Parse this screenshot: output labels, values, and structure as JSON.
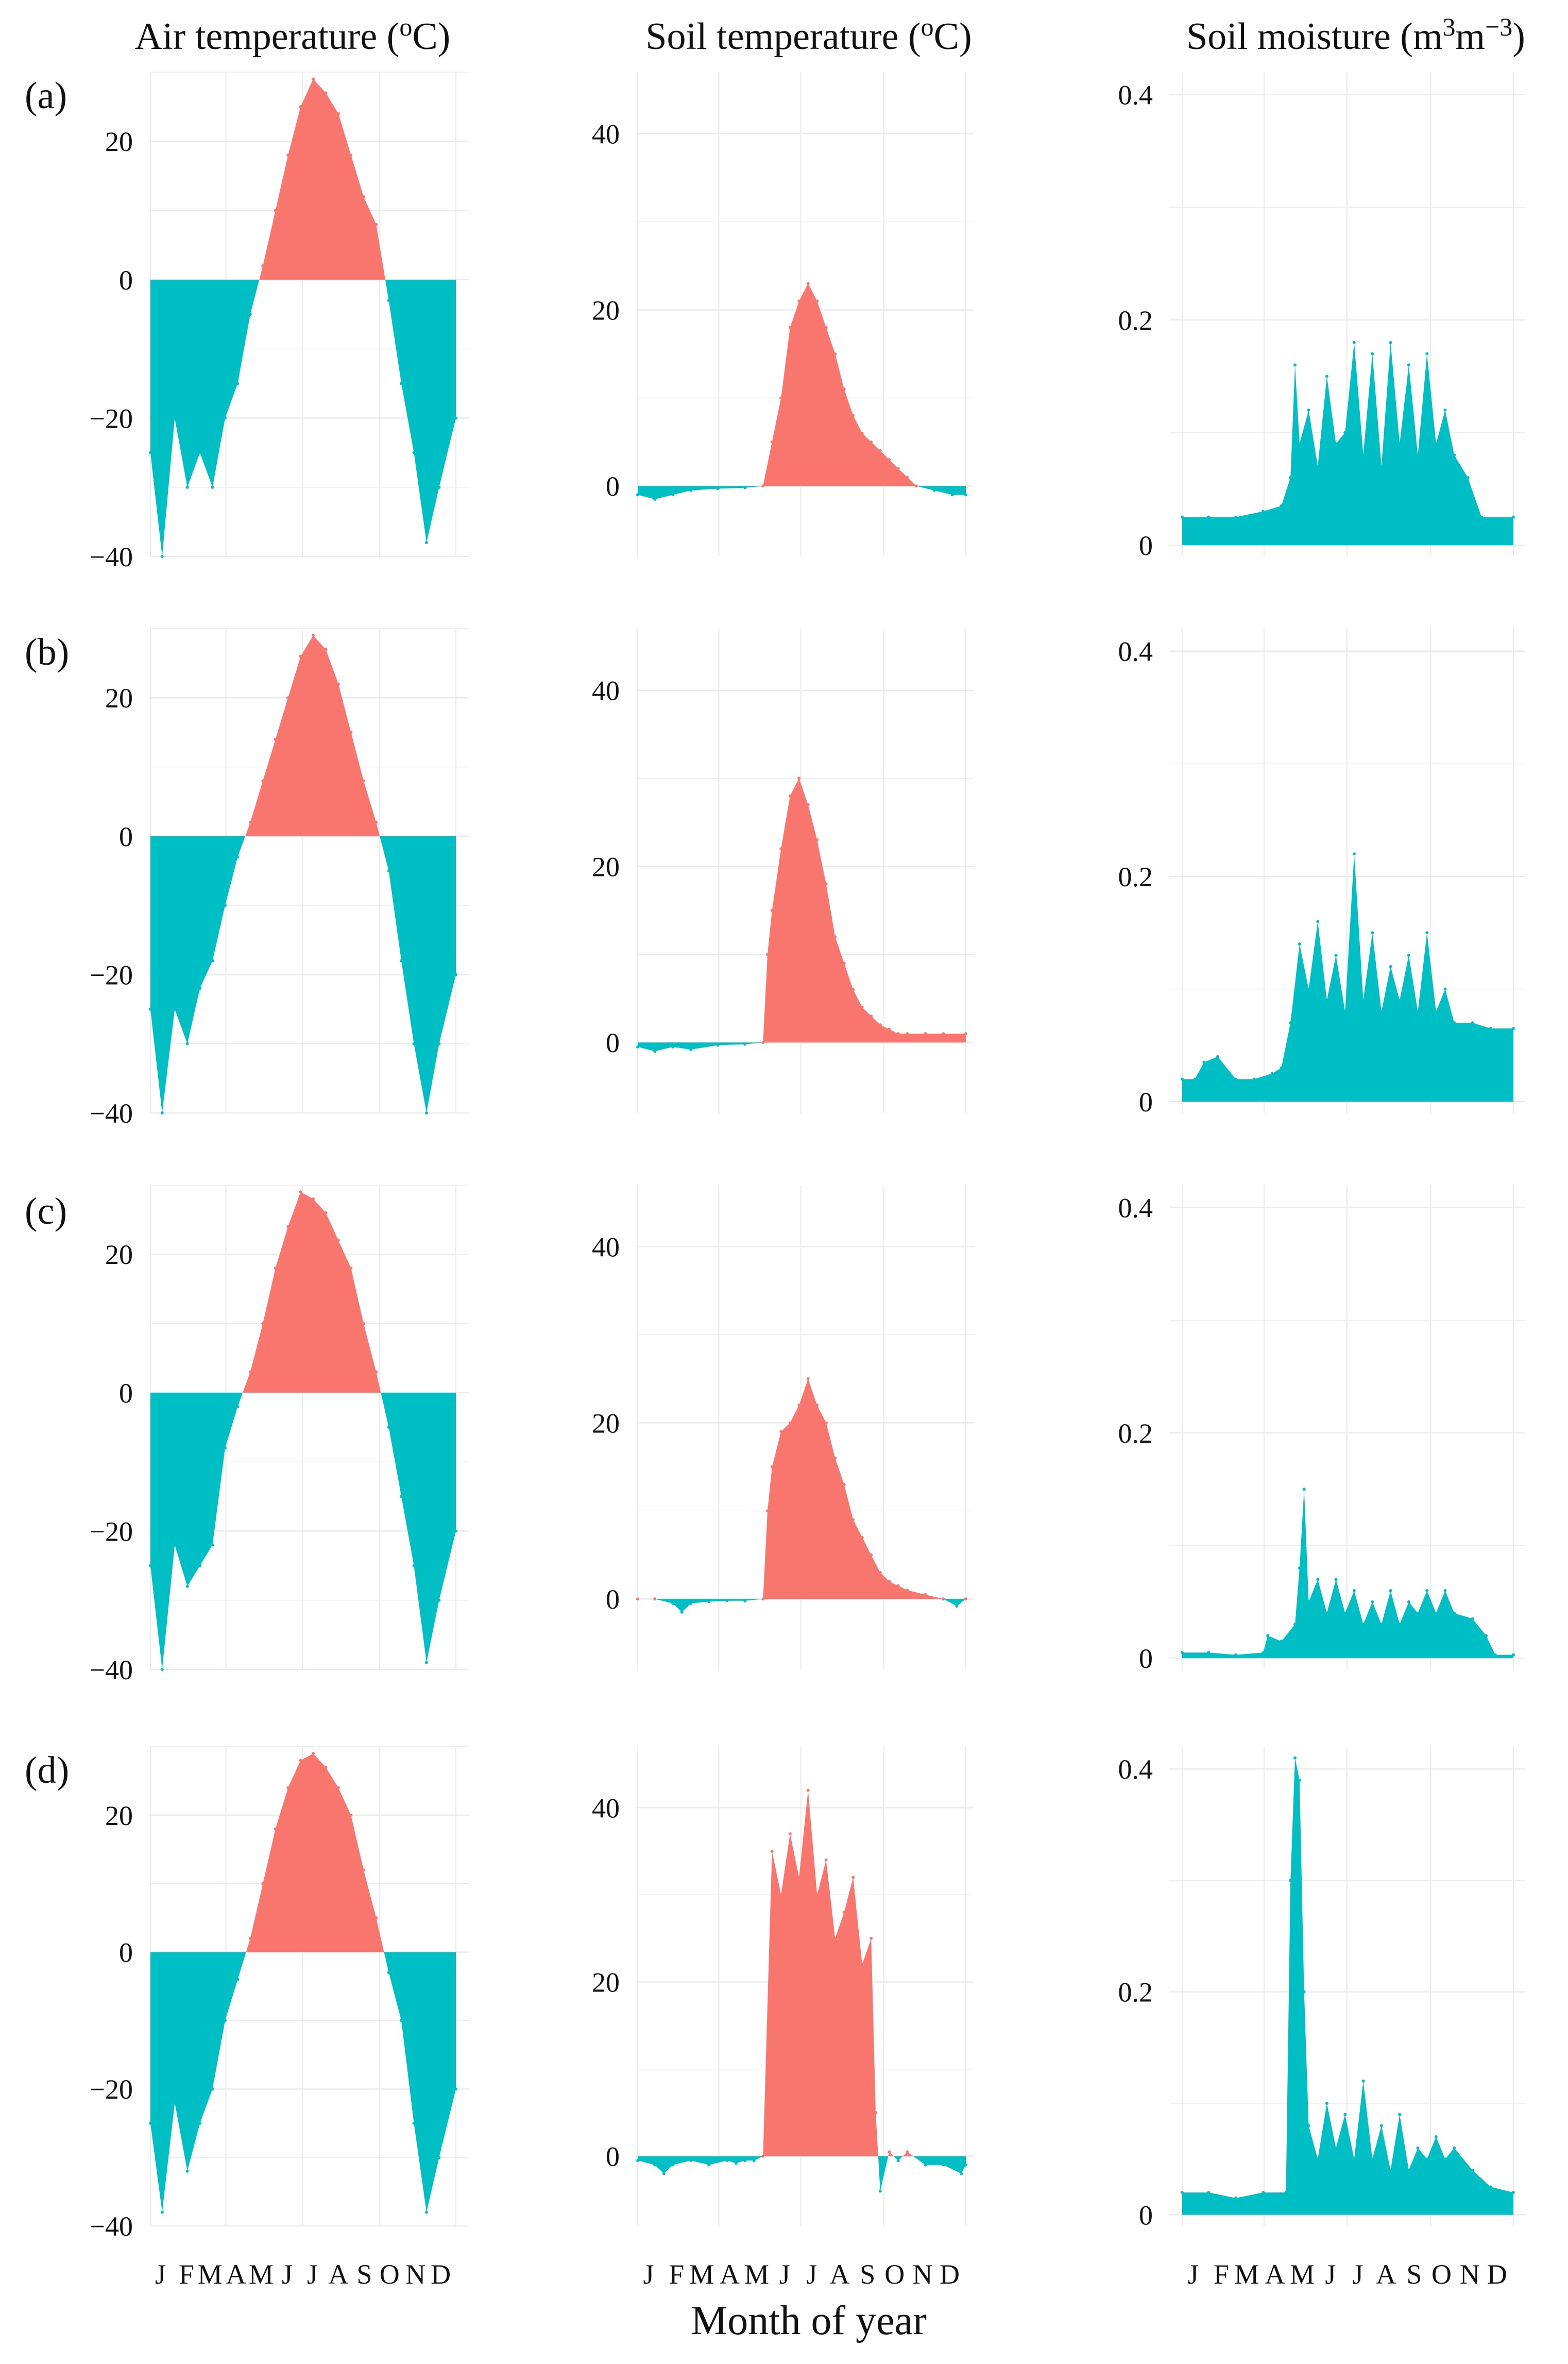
{
  "figure": {
    "column_titles": {
      "air": {
        "main": "Air temperature (",
        "sup": "o",
        "tail": "C)"
      },
      "soilt": {
        "main": "Soil temperature (",
        "sup": "o",
        "tail": "C)"
      },
      "moist": {
        "p1": "Soil moisture (m",
        "s1": "3",
        "p2": "m",
        "s2": "−3",
        "p3": ")"
      }
    },
    "row_labels": [
      "(a)",
      "(b)",
      "(c)",
      "(d)"
    ],
    "x_axis_title": "Month of year",
    "month_labels": [
      "J",
      "F",
      "M",
      "A",
      "M",
      "J",
      "J",
      "A",
      "S",
      "O",
      "N",
      "D"
    ],
    "colors": {
      "positive": "#F8766D",
      "negative": "#00BFC4",
      "grid": "#EBEBEB"
    }
  },
  "chart_data": [
    {
      "panel": "(a)",
      "variable": "Air temperature",
      "type": "area",
      "xlabel": "Month of year",
      "ylabel": "Air temperature (oC)",
      "ylim": [
        -40,
        30
      ],
      "yticks": [
        -40,
        -20,
        0,
        20
      ],
      "x": [
        1,
        15,
        30,
        45,
        60,
        75,
        90,
        105,
        120,
        135,
        150,
        165,
        180,
        195,
        210,
        225,
        240,
        255,
        270,
        285,
        300,
        315,
        330,
        345,
        365
      ],
      "y": [
        -25,
        -40,
        -20,
        -30,
        -25,
        -30,
        -20,
        -15,
        -5,
        2,
        10,
        18,
        25,
        29,
        27,
        24,
        18,
        12,
        8,
        -3,
        -15,
        -25,
        -38,
        -30,
        -20
      ]
    },
    {
      "panel": "(a)",
      "variable": "Soil temperature",
      "type": "area",
      "xlabel": "Month of year",
      "ylabel": "Soil temperature (oC)",
      "ylim": [
        -8,
        47
      ],
      "yticks": [
        0,
        20,
        40
      ],
      "x": [
        1,
        20,
        40,
        60,
        90,
        120,
        140,
        150,
        160,
        170,
        180,
        190,
        200,
        210,
        220,
        230,
        240,
        250,
        260,
        270,
        280,
        290,
        300,
        310,
        330,
        350,
        365
      ],
      "y": [
        -1,
        -1.5,
        -1,
        -0.5,
        -0.3,
        -0.2,
        0,
        5,
        10,
        18,
        21,
        23,
        21,
        18,
        15,
        11,
        8,
        6,
        5,
        4,
        3,
        2,
        1,
        0,
        -0.5,
        -1,
        -1
      ]
    },
    {
      "panel": "(a)",
      "variable": "Soil moisture",
      "type": "area",
      "xlabel": "Month of year",
      "ylabel": "Soil moisture (m3m-3)",
      "ylim": [
        -0.01,
        0.42
      ],
      "yticks": [
        0,
        0.2,
        0.4
      ],
      "x": [
        1,
        30,
        60,
        90,
        110,
        120,
        125,
        130,
        140,
        150,
        160,
        170,
        180,
        190,
        200,
        210,
        220,
        230,
        240,
        250,
        260,
        270,
        280,
        290,
        300,
        315,
        330,
        365
      ],
      "y": [
        0.025,
        0.025,
        0.025,
        0.03,
        0.035,
        0.06,
        0.16,
        0.09,
        0.12,
        0.07,
        0.15,
        0.09,
        0.1,
        0.18,
        0.08,
        0.17,
        0.07,
        0.18,
        0.09,
        0.16,
        0.08,
        0.17,
        0.09,
        0.12,
        0.08,
        0.06,
        0.025,
        0.025
      ]
    },
    {
      "panel": "(b)",
      "variable": "Air temperature",
      "type": "area",
      "xlabel": "Month of year",
      "ylabel": "Air temperature (oC)",
      "ylim": [
        -40,
        30
      ],
      "yticks": [
        -40,
        -20,
        0,
        20
      ],
      "x": [
        1,
        15,
        30,
        45,
        60,
        75,
        90,
        105,
        120,
        135,
        150,
        165,
        180,
        195,
        210,
        225,
        240,
        255,
        270,
        285,
        300,
        315,
        330,
        345,
        365
      ],
      "y": [
        -25,
        -40,
        -25,
        -30,
        -22,
        -18,
        -10,
        -3,
        2,
        8,
        14,
        20,
        26,
        29,
        27,
        22,
        15,
        8,
        2,
        -5,
        -18,
        -30,
        -40,
        -30,
        -20
      ]
    },
    {
      "panel": "(b)",
      "variable": "Soil temperature",
      "type": "area",
      "xlabel": "Month of year",
      "ylabel": "Soil temperature (oC)",
      "ylim": [
        -8,
        47
      ],
      "yticks": [
        0,
        20,
        40
      ],
      "x": [
        1,
        20,
        40,
        60,
        90,
        120,
        140,
        145,
        150,
        160,
        170,
        180,
        190,
        200,
        210,
        220,
        230,
        240,
        250,
        260,
        270,
        280,
        290,
        300,
        320,
        340,
        365
      ],
      "y": [
        -0.5,
        -1,
        -0.5,
        -0.8,
        -0.3,
        -0.2,
        0,
        10,
        15,
        22,
        28,
        30,
        27,
        23,
        18,
        12,
        9,
        6,
        4,
        3,
        2,
        1.5,
        1,
        1,
        1,
        1,
        1
      ]
    },
    {
      "panel": "(b)",
      "variable": "Soil moisture",
      "type": "area",
      "xlabel": "Month of year",
      "ylabel": "Soil moisture (m3m-3)",
      "ylim": [
        -0.01,
        0.42
      ],
      "yticks": [
        0,
        0.2,
        0.4
      ],
      "x": [
        1,
        15,
        25,
        40,
        60,
        80,
        100,
        110,
        120,
        130,
        140,
        150,
        160,
        170,
        180,
        190,
        200,
        210,
        220,
        230,
        240,
        250,
        260,
        270,
        280,
        290,
        300,
        320,
        340,
        365
      ],
      "y": [
        0.02,
        0.02,
        0.035,
        0.04,
        0.02,
        0.02,
        0.025,
        0.03,
        0.07,
        0.14,
        0.1,
        0.16,
        0.09,
        0.13,
        0.08,
        0.22,
        0.09,
        0.15,
        0.08,
        0.12,
        0.09,
        0.13,
        0.08,
        0.15,
        0.08,
        0.1,
        0.07,
        0.07,
        0.065,
        0.065
      ]
    },
    {
      "panel": "(c)",
      "variable": "Air temperature",
      "type": "area",
      "xlabel": "Month of year",
      "ylabel": "Air temperature (oC)",
      "ylim": [
        -40,
        30
      ],
      "yticks": [
        -40,
        -20,
        0,
        20
      ],
      "x": [
        1,
        15,
        30,
        45,
        60,
        75,
        90,
        105,
        120,
        135,
        150,
        165,
        180,
        195,
        210,
        225,
        240,
        255,
        270,
        285,
        300,
        315,
        330,
        345,
        365
      ],
      "y": [
        -25,
        -40,
        -22,
        -28,
        -25,
        -22,
        -8,
        -2,
        3,
        10,
        18,
        24,
        29,
        28,
        26,
        22,
        18,
        10,
        3,
        -5,
        -15,
        -25,
        -39,
        -30,
        -20
      ]
    },
    {
      "panel": "(c)",
      "variable": "Soil temperature",
      "type": "area",
      "xlabel": "Month of year",
      "ylabel": "Soil temperature (oC)",
      "ylim": [
        -8,
        47
      ],
      "yticks": [
        0,
        20,
        40
      ],
      "x": [
        1,
        20,
        40,
        50,
        60,
        80,
        100,
        120,
        140,
        145,
        150,
        160,
        170,
        180,
        190,
        200,
        210,
        220,
        230,
        240,
        250,
        260,
        270,
        280,
        290,
        300,
        320,
        340,
        355,
        365
      ],
      "y": [
        0,
        0,
        -0.5,
        -1.5,
        -0.5,
        -0.3,
        -0.2,
        -0.2,
        0,
        10,
        15,
        19,
        20,
        22,
        25,
        22,
        20,
        16,
        13,
        9,
        7,
        5,
        3,
        2,
        1.5,
        1,
        0.5,
        0,
        -0.8,
        0
      ]
    },
    {
      "panel": "(c)",
      "variable": "Soil moisture",
      "type": "area",
      "xlabel": "Month of year",
      "ylabel": "Soil moisture (m3m-3)",
      "ylim": [
        -0.01,
        0.42
      ],
      "yticks": [
        0,
        0.2,
        0.4
      ],
      "x": [
        1,
        30,
        60,
        90,
        95,
        110,
        125,
        130,
        135,
        140,
        150,
        160,
        170,
        180,
        190,
        200,
        210,
        220,
        230,
        240,
        250,
        260,
        270,
        280,
        290,
        300,
        320,
        335,
        345,
        365
      ],
      "y": [
        0.005,
        0.005,
        0.003,
        0.005,
        0.02,
        0.015,
        0.03,
        0.08,
        0.15,
        0.05,
        0.07,
        0.04,
        0.07,
        0.04,
        0.06,
        0.03,
        0.05,
        0.03,
        0.06,
        0.03,
        0.05,
        0.04,
        0.06,
        0.04,
        0.06,
        0.04,
        0.035,
        0.02,
        0.003,
        0.003
      ]
    },
    {
      "panel": "(d)",
      "variable": "Air temperature",
      "type": "area",
      "xlabel": "Month of year",
      "ylabel": "Air temperature (oC)",
      "ylim": [
        -40,
        30
      ],
      "yticks": [
        -40,
        -20,
        0,
        20
      ],
      "x": [
        1,
        15,
        30,
        45,
        60,
        75,
        90,
        105,
        120,
        135,
        150,
        165,
        180,
        195,
        210,
        225,
        240,
        255,
        270,
        285,
        300,
        315,
        330,
        345,
        365
      ],
      "y": [
        -25,
        -38,
        -22,
        -32,
        -25,
        -20,
        -10,
        -4,
        2,
        10,
        18,
        24,
        28,
        29,
        27,
        24,
        20,
        12,
        5,
        -3,
        -10,
        -25,
        -38,
        -30,
        -20
      ]
    },
    {
      "panel": "(d)",
      "variable": "Soil temperature",
      "type": "area",
      "xlabel": "Month of year",
      "ylabel": "Soil temperature (oC)",
      "ylim": [
        -8,
        47
      ],
      "yticks": [
        0,
        20,
        40
      ],
      "x": [
        1,
        20,
        30,
        40,
        60,
        80,
        100,
        110,
        120,
        130,
        140,
        150,
        160,
        170,
        180,
        190,
        200,
        210,
        220,
        230,
        240,
        250,
        260,
        265,
        270,
        280,
        290,
        300,
        320,
        340,
        360,
        365
      ],
      "y": [
        -0.5,
        -1,
        -2,
        -1,
        -0.5,
        -1,
        -0.5,
        -0.8,
        -0.5,
        -0.5,
        0,
        35,
        30,
        37,
        32,
        42,
        30,
        34,
        25,
        28,
        32,
        22,
        25,
        5,
        -4,
        0.5,
        -0.5,
        0.5,
        -1,
        -1,
        -2,
        -1
      ]
    },
    {
      "panel": "(d)",
      "variable": "Soil moisture",
      "type": "area",
      "xlabel": "Month of year",
      "ylabel": "Soil moisture (m3m-3)",
      "ylim": [
        -0.01,
        0.42
      ],
      "yticks": [
        0,
        0.2,
        0.4
      ],
      "x": [
        1,
        30,
        60,
        90,
        115,
        120,
        125,
        130,
        135,
        140,
        150,
        160,
        170,
        180,
        190,
        200,
        210,
        220,
        230,
        240,
        250,
        260,
        270,
        280,
        290,
        300,
        320,
        340,
        365
      ],
      "y": [
        0.02,
        0.02,
        0.015,
        0.02,
        0.02,
        0.3,
        0.41,
        0.39,
        0.2,
        0.08,
        0.05,
        0.1,
        0.06,
        0.09,
        0.05,
        0.12,
        0.05,
        0.08,
        0.04,
        0.09,
        0.04,
        0.06,
        0.05,
        0.07,
        0.05,
        0.06,
        0.04,
        0.025,
        0.02
      ]
    }
  ]
}
